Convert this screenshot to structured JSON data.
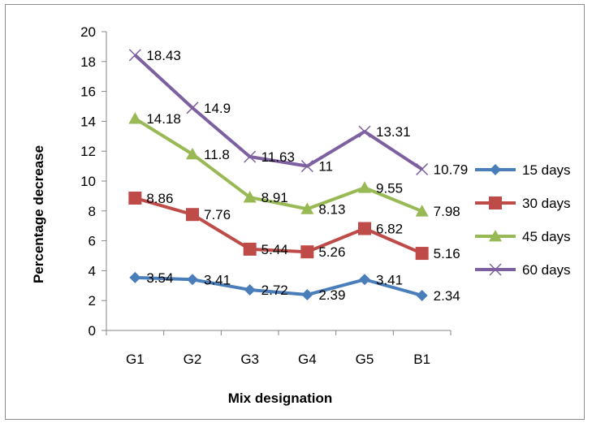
{
  "chart_data": {
    "type": "line",
    "categories": [
      "G1",
      "G2",
      "G3",
      "G4",
      "G5",
      "B1"
    ],
    "series": [
      {
        "name": "15 days",
        "values": [
          3.54,
          3.41,
          2.72,
          2.39,
          3.41,
          2.34
        ],
        "labels": [
          "3.54",
          "3.41",
          "2.72",
          "2.39",
          "3.41",
          "2.34"
        ],
        "color": "#4a7ebb",
        "marker": "diamond"
      },
      {
        "name": "30 days",
        "values": [
          8.86,
          7.76,
          5.44,
          5.26,
          6.82,
          5.16
        ],
        "labels": [
          "8.86",
          "7.76",
          "5.44",
          "5.26",
          "6.82",
          "5.16"
        ],
        "color": "#be4b48",
        "marker": "square"
      },
      {
        "name": "45 days",
        "values": [
          14.18,
          11.8,
          8.91,
          8.13,
          9.55,
          7.98
        ],
        "labels": [
          "14.18",
          "11.8",
          "8.91",
          "8.13",
          "9.55",
          "7.98"
        ],
        "color": "#98b954",
        "marker": "triangle"
      },
      {
        "name": "60 days",
        "values": [
          18.43,
          14.9,
          11.63,
          11,
          13.31,
          10.79
        ],
        "labels": [
          "18.43",
          "14.9",
          "11.63",
          "11",
          "13.31",
          "10.79"
        ],
        "color": "#7d60a0",
        "marker": "x"
      }
    ],
    "xlabel": "Mix designation",
    "ylabel": "Percentage decrease",
    "ylim": [
      0,
      20
    ],
    "yticks": [
      "0",
      "2",
      "4",
      "6",
      "8",
      "10",
      "12",
      "14",
      "16",
      "18",
      "20"
    ],
    "grid": false,
    "legend_position": "right"
  }
}
